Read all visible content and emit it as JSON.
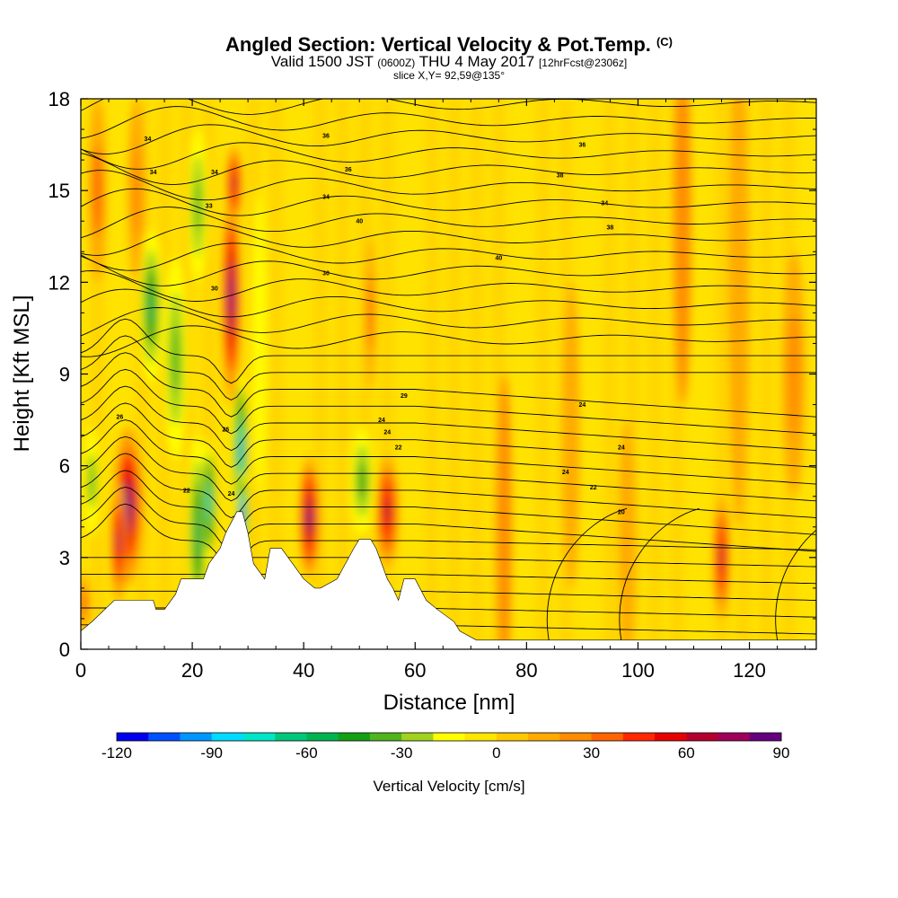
{
  "header": {
    "title": "Angled Section: Vertical Velocity & Pot.Temp.",
    "title_suffix": "(C)",
    "valid_prefix": "Valid 1500 JST",
    "valid_utc": "(0600Z)",
    "valid_date": "THU 4 May 2017",
    "forecast": "[12hrFcst@2306z]",
    "slice": "slice X,Y= 92,59@135°"
  },
  "chart_data": {
    "type": "heatmap",
    "xlabel": "Distance [nm]",
    "ylabel": "Height [Kft MSL]",
    "xlim": [
      0,
      132
    ],
    "ylim": [
      0,
      18
    ],
    "x_ticks": [
      0,
      20,
      40,
      60,
      80,
      100,
      120
    ],
    "y_ticks": [
      0,
      3,
      6,
      9,
      12,
      15,
      18
    ],
    "colorbar": {
      "label": "Vertical Velocity [cm/s]",
      "range": [
        -120,
        90
      ],
      "step": 10,
      "tick_values": [
        -120,
        -90,
        -60,
        -30,
        0,
        30,
        60,
        90
      ],
      "colors": [
        "#0000f0",
        "#0050ff",
        "#0096ff",
        "#00dcff",
        "#00e6c8",
        "#00c878",
        "#00b450",
        "#14a014",
        "#50b41e",
        "#a0d21e",
        "#ffff00",
        "#ffe600",
        "#ffc800",
        "#ffaa00",
        "#ff8c00",
        "#ff6400",
        "#ff2800",
        "#e60000",
        "#b4002d",
        "#a0005a",
        "#64007d"
      ]
    },
    "terrain": [
      [
        0,
        0.6
      ],
      [
        2,
        0.9
      ],
      [
        6,
        1.6
      ],
      [
        13,
        1.6
      ],
      [
        13.5,
        1.3
      ],
      [
        15,
        1.3
      ],
      [
        17,
        1.8
      ],
      [
        18,
        2.3
      ],
      [
        22,
        2.3
      ],
      [
        23,
        2.8
      ],
      [
        25,
        3.3
      ],
      [
        26,
        3.8
      ],
      [
        28,
        4.5
      ],
      [
        29,
        4.5
      ],
      [
        30,
        3.8
      ],
      [
        31,
        2.8
      ],
      [
        33,
        2.3
      ],
      [
        34,
        3.3
      ],
      [
        36,
        3.3
      ],
      [
        38,
        2.8
      ],
      [
        40,
        2.3
      ],
      [
        42,
        2.0
      ],
      [
        43,
        2.0
      ],
      [
        46,
        2.3
      ],
      [
        49,
        3.3
      ],
      [
        50,
        3.6
      ],
      [
        52,
        3.6
      ],
      [
        53,
        3.3
      ],
      [
        55,
        2.3
      ],
      [
        56,
        2.0
      ],
      [
        57,
        1.6
      ],
      [
        58,
        2.3
      ],
      [
        60,
        2.3
      ],
      [
        62,
        1.6
      ],
      [
        64,
        1.3
      ],
      [
        67,
        0.9
      ],
      [
        68,
        0.6
      ],
      [
        71,
        0.3
      ],
      [
        132,
        0.3
      ]
    ],
    "velocity_features": [
      {
        "x": 8.5,
        "y": 4.7,
        "w": 2.6,
        "h": 2.6,
        "v": 85
      },
      {
        "x": 6.8,
        "y": 3.5,
        "w": 1.4,
        "h": 2.0,
        "v": 70
      },
      {
        "x": 27,
        "y": 11.5,
        "w": 1.7,
        "h": 3.5,
        "v": 85
      },
      {
        "x": 27.5,
        "y": 15.2,
        "w": 1.4,
        "h": 1.3,
        "v": 60
      },
      {
        "x": 41,
        "y": 4.3,
        "w": 1.8,
        "h": 2.0,
        "v": 80
      },
      {
        "x": 55,
        "y": 4.5,
        "w": 2.0,
        "h": 1.8,
        "v": 60
      },
      {
        "x": 115,
        "y": 3.0,
        "w": 1.4,
        "h": 2.0,
        "v": 60
      },
      {
        "x": 21,
        "y": 3.8,
        "w": 1.8,
        "h": 3.2,
        "v": -60
      },
      {
        "x": 23,
        "y": 4.8,
        "w": 1.2,
        "h": 2.0,
        "v": -80
      },
      {
        "x": 28.7,
        "y": 6.5,
        "w": 1.2,
        "h": 2.5,
        "v": -95
      },
      {
        "x": 29,
        "y": 4.5,
        "w": 0.9,
        "h": 1.3,
        "v": -120
      },
      {
        "x": 12.6,
        "y": 11.2,
        "w": 2.0,
        "h": 2.5,
        "v": -55
      },
      {
        "x": 17,
        "y": 9.5,
        "w": 2.0,
        "h": 3.3,
        "v": -40
      },
      {
        "x": 21,
        "y": 14.5,
        "w": 1.6,
        "h": 2.5,
        "v": -40
      },
      {
        "x": 50.5,
        "y": 5.5,
        "w": 2.0,
        "h": 1.8,
        "v": -45
      },
      {
        "x": 2,
        "y": 5.5,
        "w": 1.4,
        "h": 1.8,
        "v": -35
      },
      {
        "x": 0.5,
        "y": 1.5,
        "w": 1.0,
        "h": 1.0,
        "v": 40
      },
      {
        "x": 52,
        "y": 11,
        "w": 0.9,
        "h": 2.5,
        "v": 35
      },
      {
        "x": 32,
        "y": 10,
        "w": 1.2,
        "h": 5.0,
        "v": -20
      },
      {
        "x": 76,
        "y": 4.0,
        "w": 1.3,
        "h": 5.0,
        "v": 20
      },
      {
        "x": 98,
        "y": 3.5,
        "w": 1.5,
        "h": 4.0,
        "v": 15
      },
      {
        "x": 118,
        "y": 12,
        "w": 1.8,
        "h": 8.0,
        "v": 15
      },
      {
        "x": 128,
        "y": 9,
        "w": 2.0,
        "h": 4.0,
        "v": 25
      },
      {
        "x": 88,
        "y": 7,
        "w": 1.5,
        "h": 5.0,
        "v": 15
      },
      {
        "x": 108,
        "y": 14,
        "w": 1.5,
        "h": 6.0,
        "v": 20
      },
      {
        "x": 3,
        "y": 15,
        "w": 1.5,
        "h": 3.0,
        "v": 30
      },
      {
        "x": 10,
        "y": 15,
        "w": 1.5,
        "h": 3.0,
        "v": 25
      }
    ],
    "contour_labels": [
      {
        "x": 12,
        "y": 16.7,
        "t": "34"
      },
      {
        "x": 13,
        "y": 15.6,
        "t": "34"
      },
      {
        "x": 24,
        "y": 15.6,
        "t": "34"
      },
      {
        "x": 23,
        "y": 14.5,
        "t": "33"
      },
      {
        "x": 24,
        "y": 11.8,
        "t": "30"
      },
      {
        "x": 44,
        "y": 12.3,
        "t": "30"
      },
      {
        "x": 44,
        "y": 16.8,
        "t": "36"
      },
      {
        "x": 48,
        "y": 15.7,
        "t": "36"
      },
      {
        "x": 44,
        "y": 14.8,
        "t": "34"
      },
      {
        "x": 50,
        "y": 14.0,
        "t": "40"
      },
      {
        "x": 75,
        "y": 12.8,
        "t": "40"
      },
      {
        "x": 90,
        "y": 16.5,
        "t": "36"
      },
      {
        "x": 86,
        "y": 15.5,
        "t": "38"
      },
      {
        "x": 94,
        "y": 14.6,
        "t": "34"
      },
      {
        "x": 95,
        "y": 13.8,
        "t": "38"
      },
      {
        "x": 7,
        "y": 7.6,
        "t": "26"
      },
      {
        "x": 26,
        "y": 7.2,
        "t": "26"
      },
      {
        "x": 19,
        "y": 5.2,
        "t": "22"
      },
      {
        "x": 27,
        "y": 5.1,
        "t": "24"
      },
      {
        "x": 58,
        "y": 8.3,
        "t": "29"
      },
      {
        "x": 54,
        "y": 7.5,
        "t": "24"
      },
      {
        "x": 55,
        "y": 7.1,
        "t": "24"
      },
      {
        "x": 57,
        "y": 6.6,
        "t": "22"
      },
      {
        "x": 90,
        "y": 8.0,
        "t": "24"
      },
      {
        "x": 97,
        "y": 6.6,
        "t": "24"
      },
      {
        "x": 87,
        "y": 5.8,
        "t": "24"
      },
      {
        "x": 92,
        "y": 5.3,
        "t": "22"
      },
      {
        "x": 97,
        "y": 4.5,
        "t": "20"
      }
    ]
  }
}
